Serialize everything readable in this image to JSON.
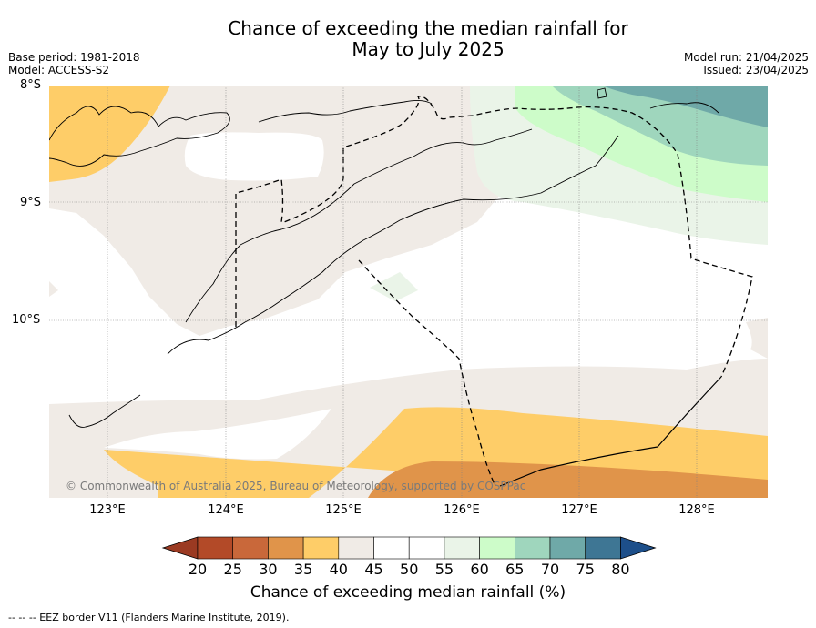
{
  "title": {
    "line1": "Chance of exceeding the median rainfall for",
    "line2": "May to July 2025"
  },
  "meta": {
    "base_period": "Base period: 1981-2018",
    "model": "Model: ACCESS-S2",
    "model_run": "Model run: 21/04/2025",
    "issued": "Issued: 23/04/2025"
  },
  "map": {
    "lat_labels": [
      "8°S",
      "9°S",
      "10°S"
    ],
    "lon_labels": [
      "123°E",
      "124°E",
      "125°E",
      "126°E",
      "127°E",
      "128°E"
    ],
    "copyright": "© Commonwealth of Australia 2025, Bureau of Meteorology, supported by COSPPac"
  },
  "colorbar": {
    "ticks": [
      "20",
      "25",
      "30",
      "35",
      "40",
      "45",
      "50",
      "55",
      "60",
      "65",
      "70",
      "75",
      "80"
    ],
    "colors": [
      "#b34a28",
      "#c9683a",
      "#e0944a",
      "#fecd68",
      "#f0ebe6",
      "#ffffff",
      "#ffffff",
      "#eaf4e8",
      "#cdfcc9",
      "#9fd6bd",
      "#6fa9a8",
      "#3e7694"
    ],
    "under_color": "#9b3a22",
    "over_color": "#1d4f8a",
    "label": "Chance of exceeding median rainfall (%)"
  },
  "footnote": "--  --  -- EEZ border V11 (Flanders Marine Institute, 2019)."
}
